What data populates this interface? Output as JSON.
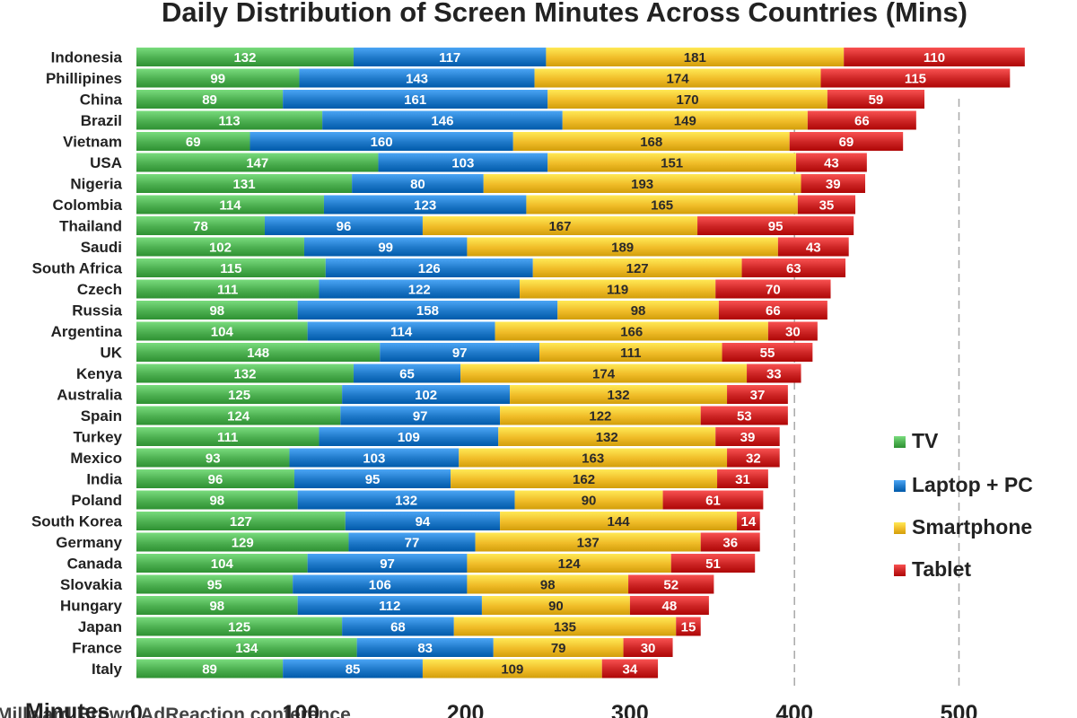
{
  "chart_data": {
    "type": "bar",
    "orientation": "horizontal",
    "stacked": true,
    "title": "Daily Distribution of Screen Minutes Across Countries (Mins)",
    "xlabel": "Minutes",
    "xlim": [
      0,
      550
    ],
    "xticks": [
      0,
      100,
      200,
      300,
      400,
      500
    ],
    "grid": "vertical dashed at 400 and 500",
    "legend_position": "right",
    "categories": [
      "Indonesia",
      "Phillipines",
      "China",
      "Brazil",
      "Vietnam",
      "USA",
      "Nigeria",
      "Colombia",
      "Thailand",
      "Saudi",
      "South Africa",
      "Czech",
      "Russia",
      "Argentina",
      "UK",
      "Kenya",
      "Australia",
      "Spain",
      "Turkey",
      "Mexico",
      "India",
      "Poland",
      "South Korea",
      "Germany",
      "Canada",
      "Slovakia",
      "Hungary",
      "Japan",
      "France",
      "Italy"
    ],
    "series": [
      {
        "name": "TV",
        "color": "#4caf50",
        "label_color": "#ffffff",
        "values": [
          132,
          99,
          89,
          113,
          69,
          147,
          131,
          114,
          78,
          102,
          115,
          111,
          98,
          104,
          148,
          132,
          125,
          124,
          111,
          93,
          96,
          98,
          127,
          129,
          104,
          95,
          98,
          125,
          134,
          89
        ]
      },
      {
        "name": "Laptop + PC",
        "color": "#1e78c8",
        "label_color": "#ffffff",
        "values": [
          117,
          143,
          161,
          146,
          160,
          103,
          80,
          123,
          96,
          99,
          126,
          122,
          158,
          114,
          97,
          65,
          102,
          97,
          109,
          103,
          95,
          132,
          94,
          77,
          97,
          106,
          112,
          68,
          83,
          85
        ]
      },
      {
        "name": "Smartphone",
        "color": "#f0bc28",
        "label_color": "#2a2a2a",
        "values": [
          181,
          174,
          170,
          149,
          168,
          151,
          193,
          165,
          167,
          189,
          127,
          119,
          98,
          166,
          111,
          174,
          132,
          122,
          132,
          163,
          162,
          90,
          144,
          137,
          124,
          98,
          90,
          135,
          79,
          109
        ]
      },
      {
        "name": "Tablet",
        "color": "#cc2424",
        "label_color": "#ffffff",
        "values": [
          110,
          115,
          59,
          66,
          69,
          43,
          39,
          35,
          95,
          43,
          63,
          70,
          66,
          30,
          55,
          33,
          37,
          53,
          39,
          32,
          31,
          61,
          14,
          36,
          51,
          52,
          48,
          15,
          30,
          34
        ]
      }
    ],
    "footer_text": "Millward Brown AdReaction conference"
  }
}
